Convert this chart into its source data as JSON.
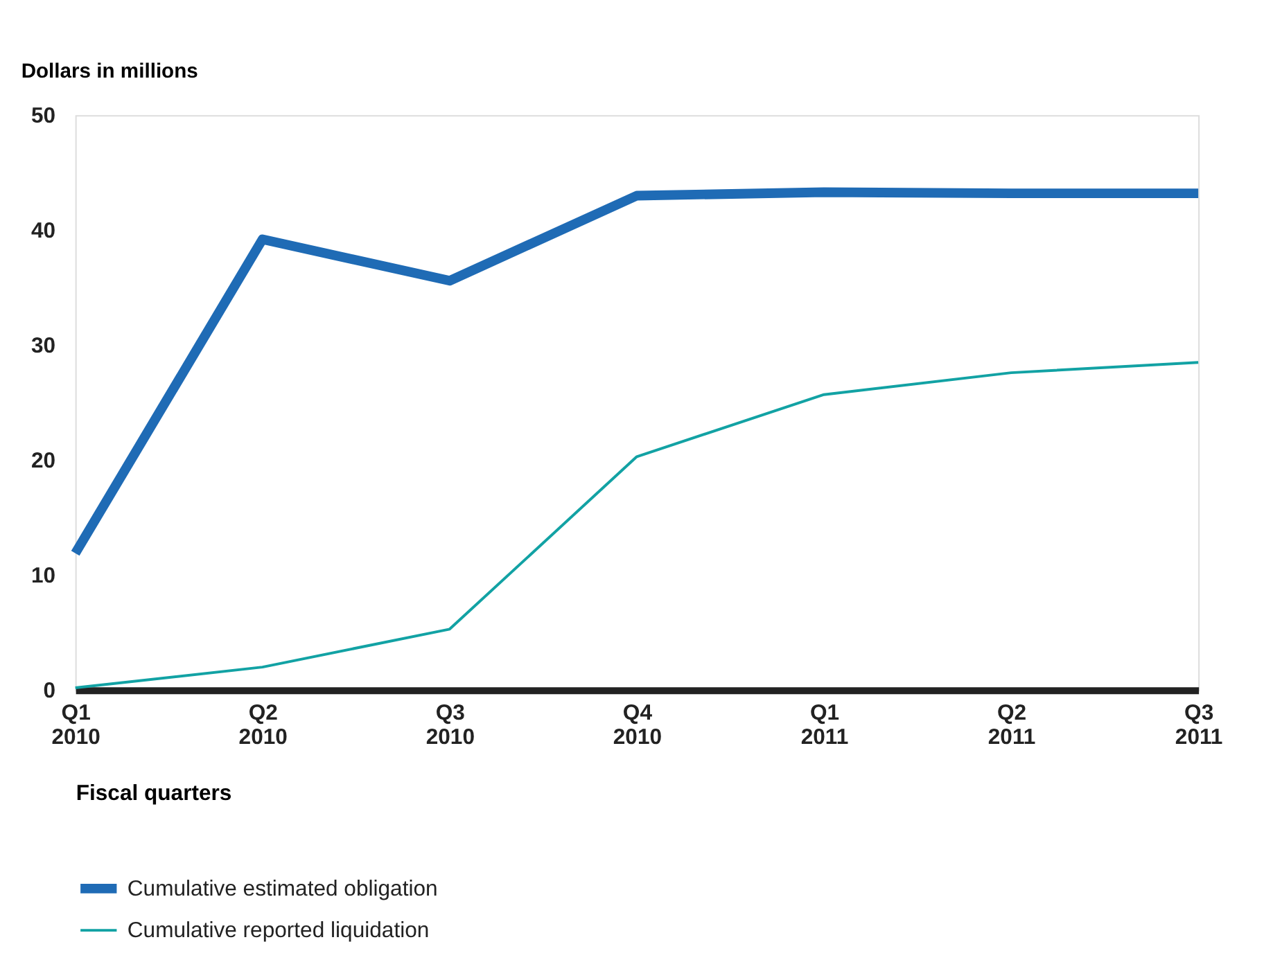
{
  "chart_data": {
    "type": "line",
    "ylabel": "Dollars in millions",
    "xlabel": "Fiscal quarters",
    "categories": [
      "Q1 2010",
      "Q2 2010",
      "Q3 2010",
      "Q4 2010",
      "Q1 2011",
      "Q2 2011",
      "Q3 2011"
    ],
    "series": [
      {
        "name": "Cumulative estimated obligation",
        "color": "#1f6bb5",
        "values": [
          11.9,
          39.2,
          35.6,
          43.0,
          43.3,
          43.2,
          43.2
        ]
      },
      {
        "name": "Cumulative reported liquidation",
        "color": "#12a2a4",
        "values": [
          0.2,
          2.0,
          5.3,
          20.3,
          25.7,
          27.6,
          28.5
        ]
      }
    ],
    "ylim": [
      0,
      50
    ],
    "yticks": [
      0,
      10,
      20,
      30,
      40,
      50
    ],
    "grid": false,
    "legend": "bottom",
    "marker": "none",
    "line_style": "solid"
  }
}
